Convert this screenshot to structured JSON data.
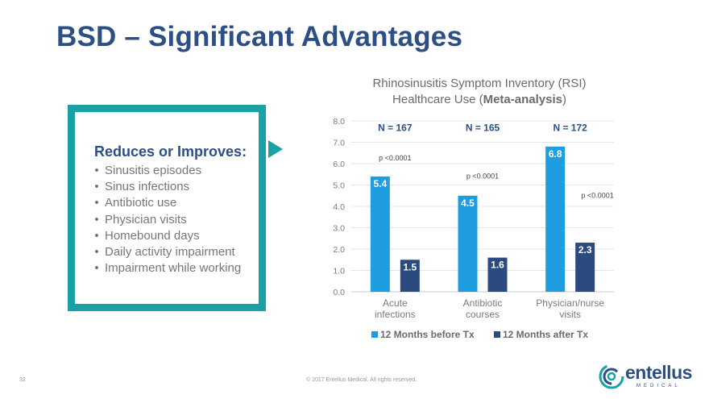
{
  "slide": {
    "title": "BSD – Significant Advantages",
    "page_number": "32",
    "copyright": "© 2017 Entellus Medical. All rights reserved."
  },
  "callout": {
    "heading": "Reduces or Improves:",
    "bullet_char": "•",
    "items": [
      "Sinusitis episodes",
      "Sinus infections",
      "Antibiotic use",
      "Physician visits",
      "Homebound days",
      "Daily activity impairment",
      "Impairment while working"
    ]
  },
  "logo": {
    "name": "entellus",
    "tagline": "MEDICAL"
  },
  "colors": {
    "title": "#2c4f86",
    "teal": "#19a1a6",
    "before": "#1e9ee0",
    "after": "#2b4a7f"
  },
  "chart_data": {
    "type": "bar",
    "title_line1": "Rhinosinusitis Symptom Inventory (RSI)",
    "title_line2_pre": "Healthcare Use (",
    "title_line2_bold": "Meta-analysis",
    "title_line2_post": ")",
    "categories": [
      [
        "Acute",
        "infections"
      ],
      [
        "Antibiotic",
        "courses"
      ],
      [
        "Physician/nurse",
        "visits"
      ]
    ],
    "series": [
      {
        "name": "12 Months before Tx",
        "color": "#1e9ee0",
        "values": [
          5.4,
          4.5,
          6.8
        ]
      },
      {
        "name": "12 Months after Tx",
        "color": "#2b4a7f",
        "values": [
          1.5,
          1.6,
          2.3
        ]
      }
    ],
    "data_labels": {
      "before": [
        "5.4",
        "4.5",
        "6.8"
      ],
      "after": [
        "1.5",
        "1.6",
        "2.3"
      ]
    },
    "n_labels": [
      "N = 167",
      "N = 165",
      "N = 172"
    ],
    "p_values": [
      "p <0.0001",
      "p <0.0001",
      "p <0.0001"
    ],
    "y_ticks": [
      "0.0",
      "1.0",
      "2.0",
      "3.0",
      "4.0",
      "5.0",
      "6.0",
      "7.0",
      "8.0"
    ],
    "ylim": [
      0,
      8
    ],
    "grid": true,
    "legend_position": "bottom"
  }
}
